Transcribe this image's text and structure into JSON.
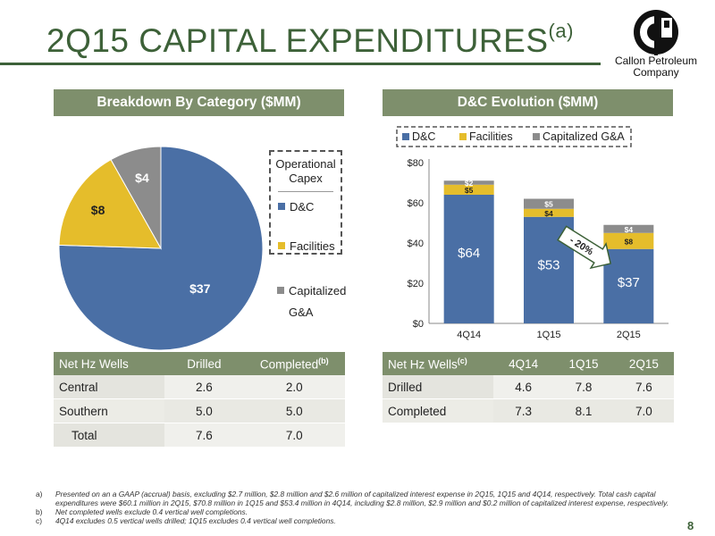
{
  "title": {
    "main": "2Q15 CAPITAL EXPENDITURES",
    "superscript": "(a)"
  },
  "logo": {
    "line1": "Callon Petroleum",
    "line2": "Company"
  },
  "left_banner": "Breakdown By Category ($MM)",
  "right_banner": "D&C Evolution ($MM)",
  "pie": {
    "box_title": "Operational Capex",
    "legend": [
      "D&C",
      "Facilities",
      "Capitalized",
      "G&A"
    ],
    "labels": [
      "$37",
      "$8",
      "$4"
    ]
  },
  "bar_legend": [
    "D&C",
    "Facilities",
    "Capitalized G&A"
  ],
  "callout": "- 20%",
  "left_table": {
    "headers": [
      "Net Hz Wells",
      "Drilled",
      "Completed",
      "(b)"
    ],
    "rows": [
      {
        "name": "Central",
        "drilled": "2.6",
        "completed": "2.0"
      },
      {
        "name": "Southern",
        "drilled": "5.0",
        "completed": "5.0"
      },
      {
        "name": "Total",
        "drilled": "7.6",
        "completed": "7.0"
      }
    ]
  },
  "right_table": {
    "headers": [
      "Net Hz Wells",
      "(c)",
      "4Q14",
      "1Q15",
      "2Q15"
    ],
    "rows": [
      {
        "name": "Drilled",
        "v": [
          "4.6",
          "7.8",
          "7.6"
        ]
      },
      {
        "name": "Completed",
        "v": [
          "7.3",
          "8.1",
          "7.0"
        ]
      }
    ]
  },
  "footnotes": [
    {
      "label": "a)",
      "text": "Presented on an a GAAP (accrual) basis, excluding $2.7 million, $2.8 million and $2.6 million of capitalized interest expense in 2Q15, 1Q15 and 4Q14, respectively. Total cash capital expenditures were $60.1 million in 2Q15, $70.8 million in 1Q15 and $53.4 million in 4Q14, including $2.8 million, $2.9 million and $0.2 million of capitalized interest expense, respectively."
    },
    {
      "label": "b)",
      "text": "Net completed wells exclude 0.4 vertical well completions."
    },
    {
      "label": "c)",
      "text": "4Q14 excludes 0.5 vertical wells drilled; 1Q15 excludes 0.4 vertical well completions."
    }
  ],
  "page_number": "8",
  "colors": {
    "dc": "#4a6fa5",
    "facilities": "#e5bd2b",
    "ga": "#8c8c8c",
    "banner": "#7e8f6c",
    "title": "#3d6138"
  },
  "chart_data": [
    {
      "type": "pie",
      "categories": [
        "D&C",
        "Facilities",
        "Capitalized G&A"
      ],
      "values": [
        37,
        8,
        4
      ],
      "labels": [
        "$37",
        "$8",
        "$4"
      ]
    },
    {
      "type": "bar",
      "stacked": true,
      "categories": [
        "4Q14",
        "1Q15",
        "2Q15"
      ],
      "series": [
        {
          "name": "D&C",
          "values": [
            64,
            53,
            37
          ],
          "labels": [
            "$64",
            "$53",
            "$37"
          ]
        },
        {
          "name": "Facilities",
          "values": [
            5,
            4,
            8
          ],
          "labels": [
            "$5",
            "$4",
            "$8"
          ]
        },
        {
          "name": "Capitalized G&A",
          "values": [
            2,
            5,
            4
          ],
          "labels": [
            "$2",
            "$5",
            "$4"
          ]
        }
      ],
      "yticks": [
        "$0",
        "$20",
        "$40",
        "$60",
        "$80"
      ],
      "ylim": [
        0,
        80
      ],
      "legend": "top"
    }
  ]
}
